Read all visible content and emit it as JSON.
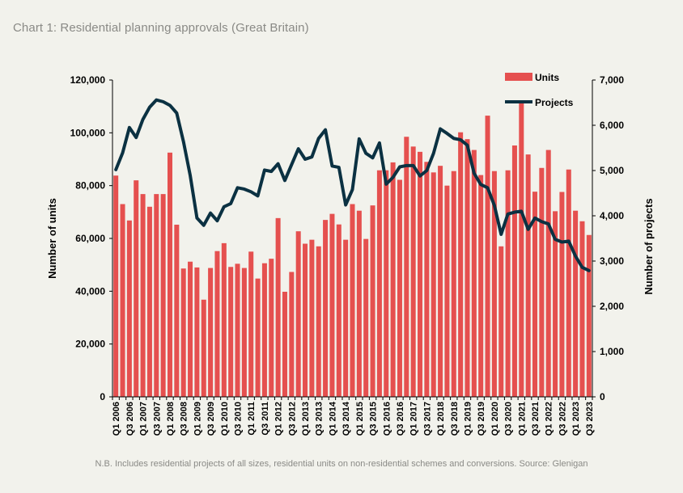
{
  "title": "Chart 1: Residential planning approvals (Great Britain)",
  "footnote": "N.B. Includes residential projects of all sizes, residential units on non-residential schemes  and conversions.  Source: Glenigan",
  "colors": {
    "bar": "#e5504f",
    "line": "#0b3142",
    "background": "#f2f2ec"
  },
  "chart_data": {
    "type": "bar+line",
    "categories": [
      "Q1 2006",
      "Q2 2006",
      "Q3 2006",
      "Q4 2006",
      "Q1 2007",
      "Q2 2007",
      "Q3 2007",
      "Q4 2007",
      "Q1 2008",
      "Q2 2008",
      "Q3 2008",
      "Q4 2008",
      "Q1 2009",
      "Q2 2009",
      "Q3 2009",
      "Q4 2009",
      "Q1 2010",
      "Q2 2010",
      "Q3 2010",
      "Q4 2010",
      "Q1 2011",
      "Q2 2011",
      "Q3 2011",
      "Q4 2011",
      "Q1 2012",
      "Q2 2012",
      "Q3 2012",
      "Q4 2012",
      "Q1 2013",
      "Q2 2013",
      "Q3 2013",
      "Q4 2013",
      "Q1 2014",
      "Q2 2014",
      "Q3 2014",
      "Q4 2014",
      "Q1 2015",
      "Q2 2015",
      "Q3 2015",
      "Q4 2015",
      "Q1 2016",
      "Q2 2016",
      "Q3 2016",
      "Q4 2016",
      "Q1 2017",
      "Q2 2017",
      "Q3 2017",
      "Q4 2017",
      "Q1 2018",
      "Q2 2018",
      "Q3 2018",
      "Q4 2018",
      "Q1 2019",
      "Q2 2019",
      "Q3 2019",
      "Q4 2019",
      "Q1 2020",
      "Q2 2020",
      "Q3 2020",
      "Q4 2020",
      "Q1 2021",
      "Q2 2021",
      "Q3 2021",
      "Q4 2021",
      "Q1 2022",
      "Q2 2022",
      "Q3 2022",
      "Q4 2022",
      "Q1 2023",
      "Q2 2023",
      "Q3 2023"
    ],
    "tick_labels": [
      "Q1 2006",
      "Q3 2006",
      "Q1 2007",
      "Q3 2007",
      "Q1 2008",
      "Q3 2008",
      "Q1 2009",
      "Q3 2009",
      "Q1 2010",
      "Q3 2010",
      "Q1 2011",
      "Q3 2011",
      "Q1 2012",
      "Q3 2012",
      "Q1 2013",
      "Q3 2013",
      "Q1 2014",
      "Q3 2014",
      "Q1 2015",
      "Q3 2015",
      "Q1 2016",
      "Q3 2016",
      "Q1 2017",
      "Q3 2017",
      "Q1 2018",
      "Q3 2018",
      "Q1 2019",
      "Q3 2019",
      "Q1 2020",
      "Q3 2020",
      "Q1 2021",
      "Q3 2021",
      "Q1 2022",
      "Q3 2022",
      "Q1 2023",
      "Q3 2023"
    ],
    "series": [
      {
        "name": "Units",
        "type": "bar",
        "axis": "left",
        "values": [
          83800,
          73000,
          66800,
          82000,
          76800,
          72000,
          76800,
          76800,
          92500,
          65200,
          48600,
          51200,
          49000,
          36800,
          48800,
          55200,
          58200,
          49200,
          50400,
          48800,
          55000,
          44800,
          50600,
          52300,
          67700,
          39800,
          47300,
          62700,
          58000,
          59500,
          57000,
          67000,
          69300,
          65300,
          59500,
          73000,
          70500,
          59800,
          72500,
          85800,
          85800,
          88800,
          82200,
          98500,
          94800,
          92800,
          89000,
          85000,
          87500,
          80000,
          85500,
          100200,
          97600,
          93500,
          84000,
          106500,
          85500,
          57000,
          85800,
          95200,
          112000,
          91800,
          77700,
          86700,
          93500,
          70300,
          77600,
          86100,
          70500,
          66500,
          61300
        ]
      },
      {
        "name": "Projects",
        "type": "line",
        "axis": "right",
        "values": [
          5020,
          5390,
          5950,
          5730,
          6130,
          6400,
          6560,
          6520,
          6440,
          6270,
          5640,
          4890,
          3950,
          3790,
          4060,
          3890,
          4200,
          4270,
          4620,
          4590,
          4530,
          4440,
          5010,
          4980,
          5150,
          4780,
          5130,
          5480,
          5250,
          5300,
          5710,
          5900,
          5100,
          5070,
          4240,
          4580,
          5700,
          5380,
          5280,
          5610,
          4700,
          4850,
          5080,
          5110,
          5110,
          4880,
          5000,
          5380,
          5920,
          5820,
          5710,
          5680,
          5560,
          4940,
          4690,
          4620,
          4230,
          3590,
          4040,
          4080,
          4100,
          3700,
          3950,
          3870,
          3820,
          3480,
          3420,
          3440,
          3110,
          2860,
          2790
        ]
      }
    ],
    "legend": {
      "units": "Units",
      "projects": "Projects",
      "position": "top-right"
    },
    "left_axis": {
      "label": "Number of units",
      "ylim": [
        0,
        120000
      ],
      "ticks": [
        "0",
        "20,000",
        "40,000",
        "60,000",
        "80,000",
        "100,000",
        "120,000"
      ]
    },
    "right_axis": {
      "label": "Number of projects",
      "ylim": [
        0,
        7000
      ],
      "ticks": [
        "0",
        "1,000",
        "2,000",
        "3,000",
        "4,000",
        "5,000",
        "6,000",
        "7,000"
      ]
    },
    "grid": false
  }
}
